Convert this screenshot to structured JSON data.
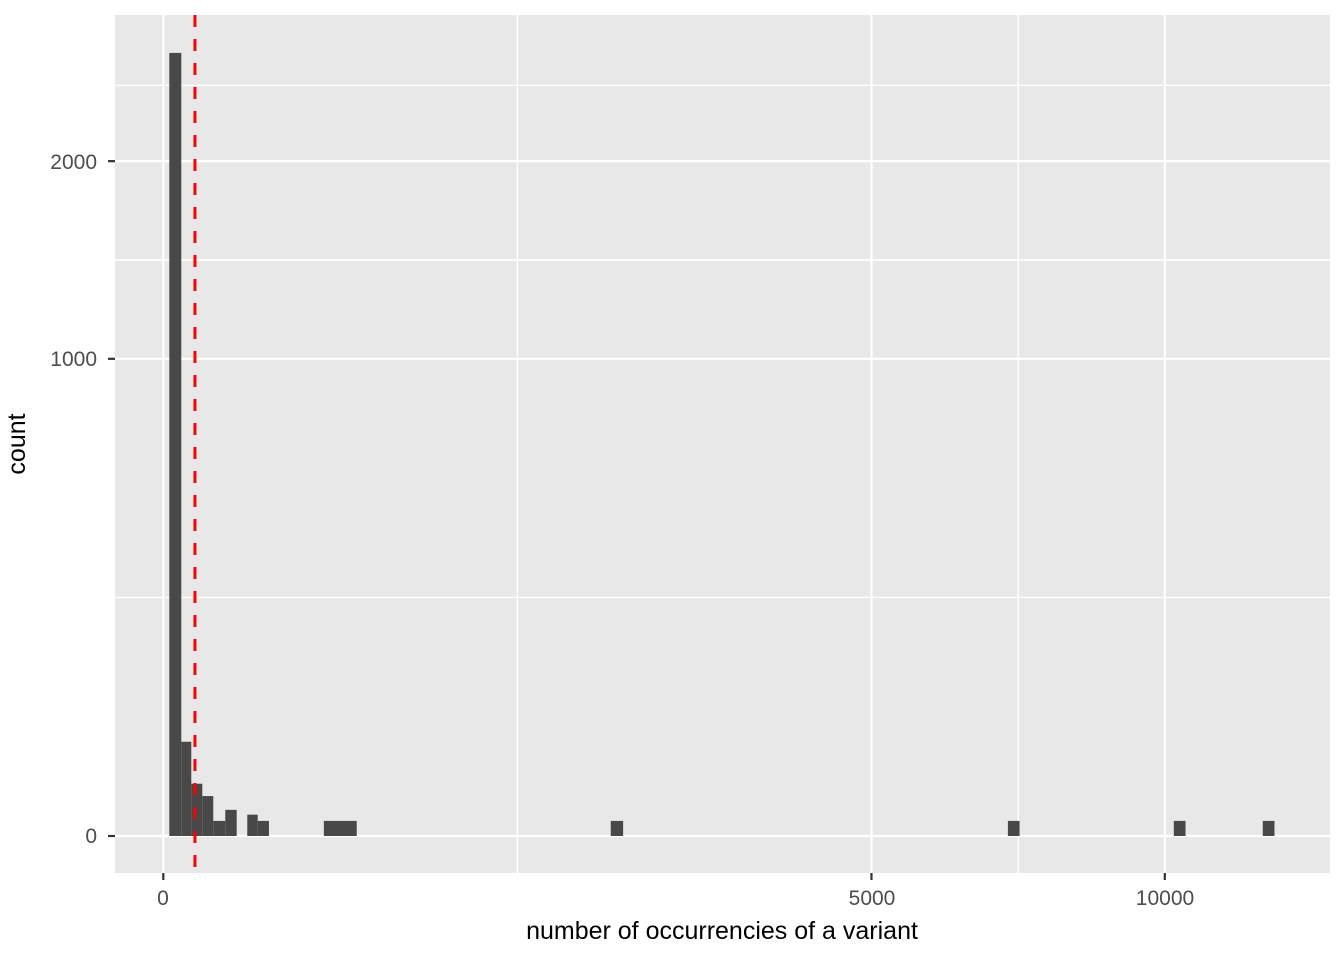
{
  "chart_data": {
    "type": "bar",
    "subtype": "histogram",
    "title": "",
    "xlabel": "number of occurrencies of a variant",
    "ylabel": "count",
    "x_scale": "sqrt",
    "y_scale": "sqrt",
    "xlim": [
      0,
      13600
    ],
    "ylim": [
      0,
      2960
    ],
    "grid": "on",
    "legend_position": "none",
    "x_ticks": [
      {
        "value": 0,
        "label": "0"
      },
      {
        "value": 5000,
        "label": "5000"
      },
      {
        "value": 10000,
        "label": "10000"
      }
    ],
    "y_ticks": [
      {
        "value": 0,
        "label": "0"
      },
      {
        "value": 1000,
        "label": "1000"
      },
      {
        "value": 2000,
        "label": "2000"
      }
    ],
    "x_minor_breaks": [
      1250,
      7287
    ],
    "y_minor_breaks": [
      250,
      1457,
      2475
    ],
    "bars": [
      {
        "x_min": 0.36,
        "x_max": 3.23,
        "count": 2693
      },
      {
        "x_min": 3.23,
        "x_max": 7.81,
        "count": 39
      },
      {
        "x_min": 7.81,
        "x_max": 15.15,
        "count": 12
      },
      {
        "x_min": 15.15,
        "x_max": 24.9,
        "count": 7
      },
      {
        "x_min": 24.9,
        "x_max": 38.3,
        "count": 1
      },
      {
        "x_min": 38.3,
        "x_max": 53.7,
        "count": 3
      },
      {
        "x_min": 70.3,
        "x_max": 88.8,
        "count": 2
      },
      {
        "x_min": 88.8,
        "x_max": 111.3,
        "count": 1
      },
      {
        "x_min": 257,
        "x_max": 373,
        "count": 1
      },
      {
        "x_min": 1996,
        "x_max": 2108,
        "count": 1
      },
      {
        "x_min": 7112,
        "x_max": 7310,
        "count": 1
      },
      {
        "x_min": 10181,
        "x_max": 10418,
        "count": 1
      },
      {
        "x_min": 12052,
        "x_max": 12310,
        "count": 1
      }
    ],
    "vline": {
      "x": 10,
      "style": "dashed",
      "color": "#FF0000"
    },
    "colors": {
      "bar": "#484848",
      "panel_background": "#E8E8E8",
      "grid": "#FFFFFF",
      "tick_mark": "#333333",
      "tick_text": "#4D4D4D",
      "axis_title_text": "#000000",
      "figure_background": "#FFFFFF"
    }
  }
}
